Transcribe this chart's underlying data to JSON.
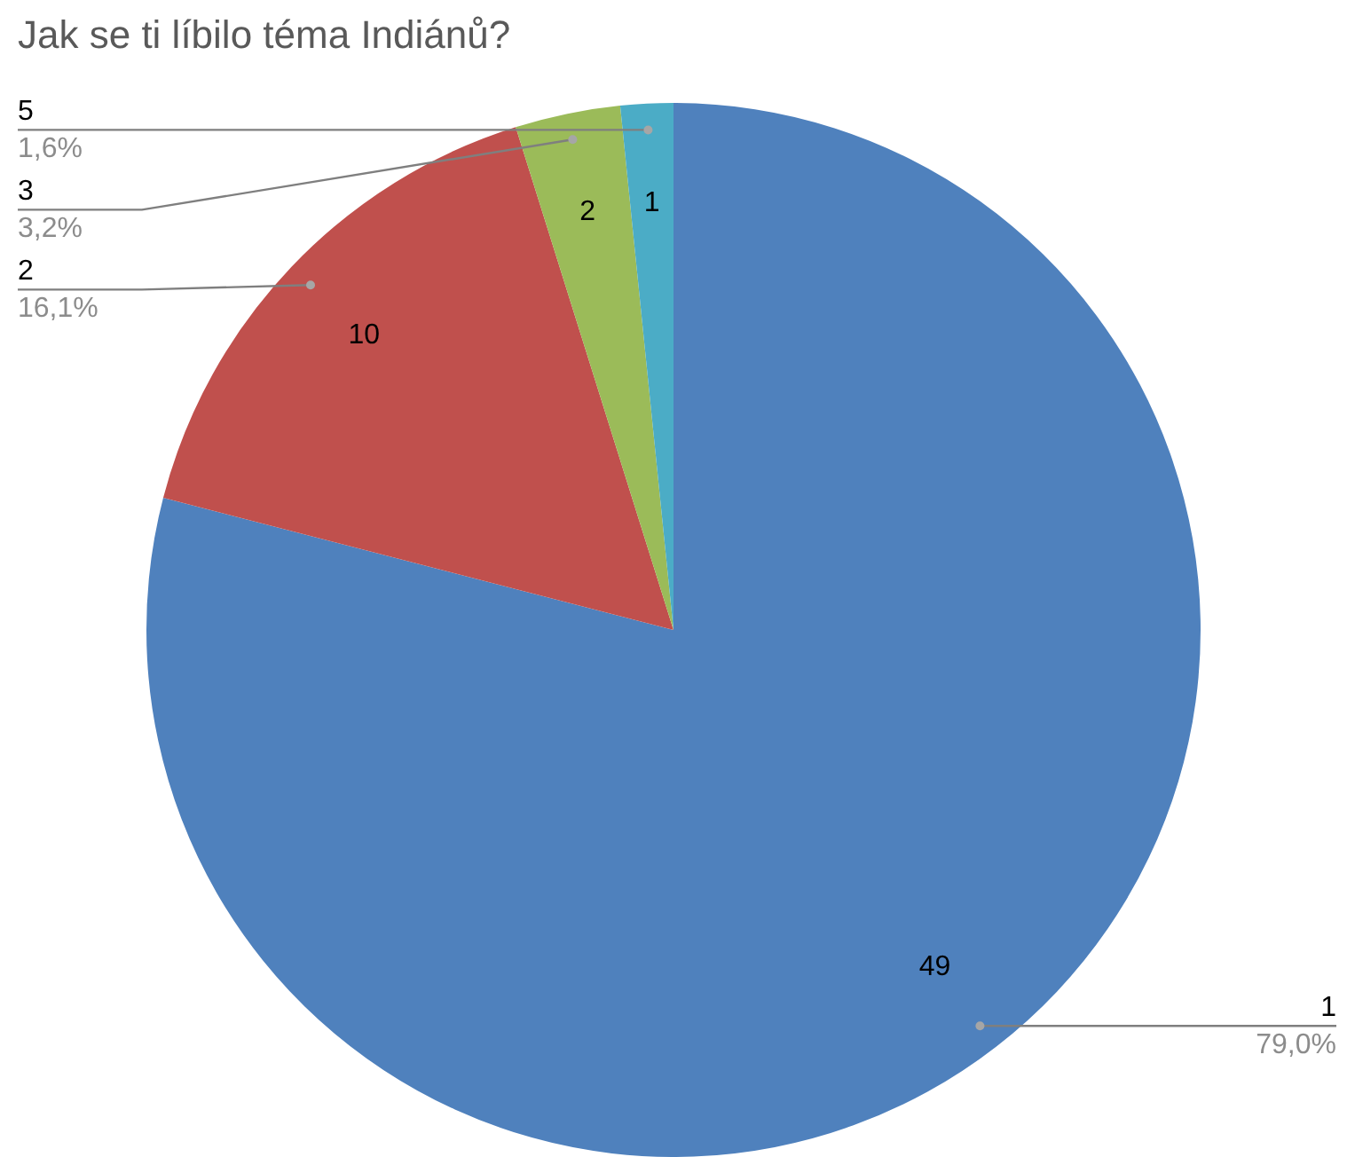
{
  "chart_data": {
    "type": "pie",
    "title": "Jak se ti líbilo téma Indiánů?",
    "categories": [
      "1",
      "2",
      "3",
      "5"
    ],
    "values": [
      49,
      10,
      2,
      1
    ],
    "colors": [
      "#4f81bd",
      "#c0504d",
      "#9bbb59",
      "#4bacc6"
    ],
    "data_labels": true,
    "annotations": [
      "79,0%",
      "16,1%",
      "3,2%",
      "1,6%"
    ],
    "legend": false
  }
}
